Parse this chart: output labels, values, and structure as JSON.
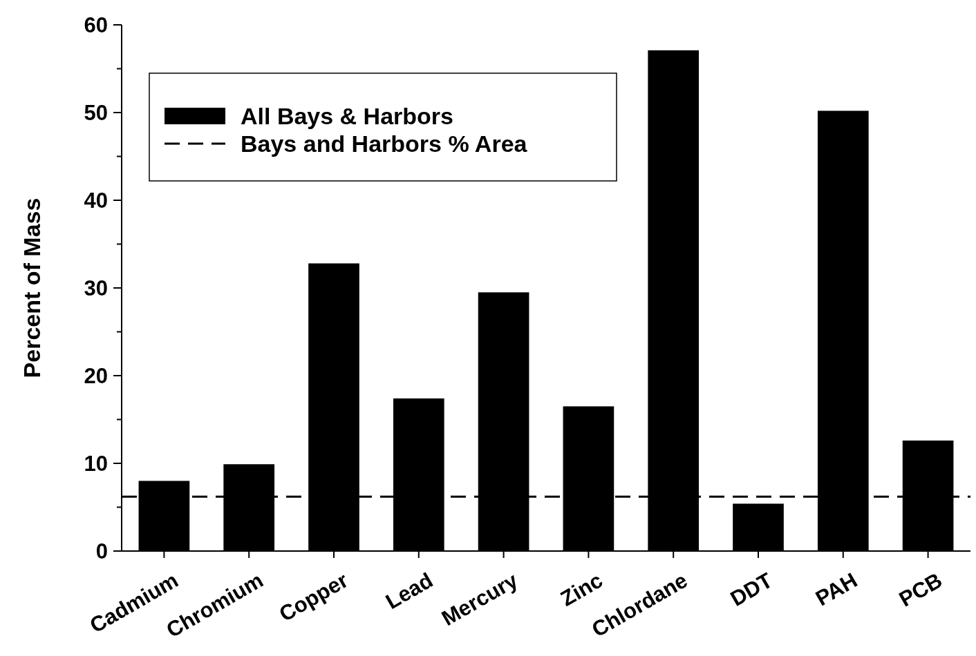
{
  "chart_data": {
    "type": "bar",
    "ylabel": "Percent of Mass",
    "categories": [
      "Cadmium",
      "Chromium",
      "Copper",
      "Lead",
      "Mercury",
      "Zinc",
      "Chlordane",
      "DDT",
      "PAH",
      "PCB"
    ],
    "series": [
      {
        "name": "All Bays & Harbors",
        "color": "#000000",
        "values": [
          8.0,
          9.9,
          32.8,
          17.4,
          29.5,
          16.5,
          57.1,
          5.4,
          50.2,
          12.6
        ]
      }
    ],
    "ylim": [
      0,
      60
    ],
    "yticks": [
      0,
      {
        "value": 5,
        "label": null
      },
      10,
      {
        "value": 15,
        "label": null
      },
      20,
      {
        "value": 25,
        "label": null
      },
      30,
      {
        "value": 35,
        "label": null
      },
      40,
      {
        "value": 45,
        "label": null
      },
      50,
      {
        "value": 55,
        "label": null
      },
      60
    ],
    "ref_lines": [
      {
        "axis": "y",
        "value": 6.2,
        "label": "Bays and Harbors % Area",
        "color": "#000000",
        "line_style": "dashed"
      }
    ],
    "legend": "top left",
    "grid": false
  }
}
